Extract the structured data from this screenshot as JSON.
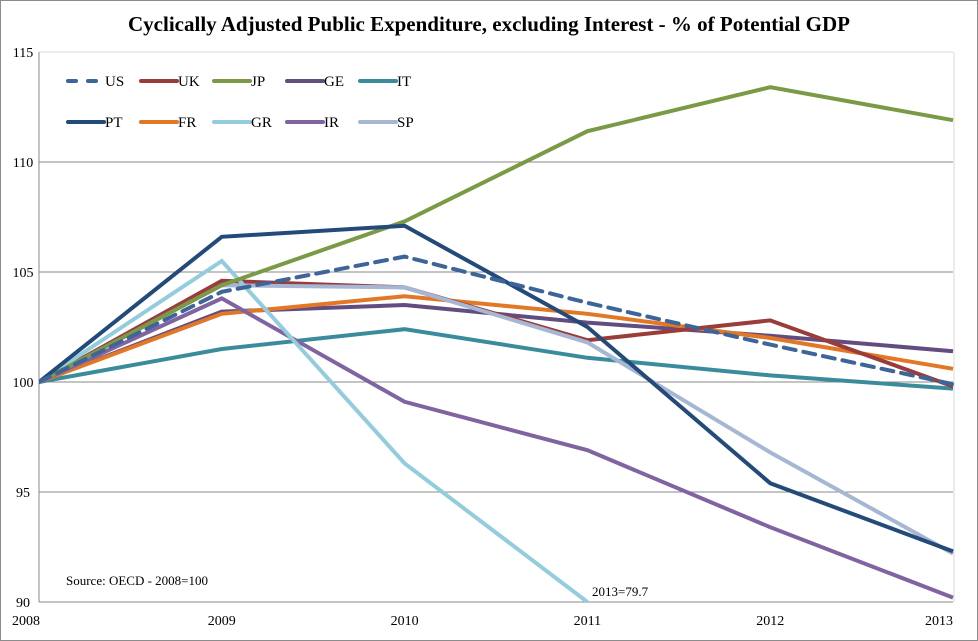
{
  "chart_data": {
    "type": "line",
    "title": "Cyclically Adjusted  Public Expenditure,  excluding  Interest  - % of Potential GDP",
    "xlabel": "",
    "ylabel": "",
    "x": [
      "2008",
      "2009",
      "2010",
      "2011",
      "2012",
      "2013"
    ],
    "ylim": [
      90,
      115
    ],
    "yticks": [
      "90",
      "95",
      "100",
      "105",
      "110",
      "115"
    ],
    "grid": true,
    "legend_position": "top-left",
    "series": [
      {
        "name": "US",
        "color": "#3e6599",
        "dashed": true,
        "values": [
          100,
          104.1,
          105.7,
          103.6,
          101.7,
          99.9
        ]
      },
      {
        "name": "UK",
        "color": "#993c3a",
        "dashed": false,
        "values": [
          100,
          104.6,
          104.3,
          101.9,
          102.8,
          99.8
        ]
      },
      {
        "name": "JP",
        "color": "#7b9a46",
        "dashed": false,
        "values": [
          100,
          104.4,
          107.3,
          111.4,
          113.4,
          111.9
        ]
      },
      {
        "name": "GE",
        "color": "#634c80",
        "dashed": false,
        "values": [
          100,
          103.2,
          103.5,
          102.7,
          102.1,
          101.4
        ]
      },
      {
        "name": "IT",
        "color": "#3a8c9c",
        "dashed": false,
        "values": [
          100,
          101.5,
          102.4,
          101.1,
          100.3,
          99.7
        ]
      },
      {
        "name": "PT",
        "color": "#234a79",
        "dashed": false,
        "values": [
          100,
          106.6,
          107.1,
          102.5,
          95.4,
          92.3
        ]
      },
      {
        "name": "FR",
        "color": "#e27826",
        "dashed": false,
        "values": [
          100,
          103.1,
          103.9,
          103.1,
          102.0,
          100.6
        ]
      },
      {
        "name": "GR",
        "color": "#93cddd",
        "dashed": false,
        "values": [
          100,
          105.5,
          96.3,
          90.0,
          null,
          79.7
        ]
      },
      {
        "name": "IR",
        "color": "#8064a2",
        "dashed": false,
        "values": [
          100,
          103.8,
          99.1,
          96.9,
          93.4,
          90.2
        ]
      },
      {
        "name": "SP",
        "color": "#a6b7d4",
        "dashed": false,
        "values": [
          100,
          104.4,
          104.3,
          101.8,
          96.8,
          92.2
        ]
      }
    ],
    "annotations": [
      {
        "text": "Source: OECD -  2008=100",
        "position": "bottom-left"
      },
      {
        "text": "2013=79.7",
        "near": "GR at 2011"
      }
    ]
  }
}
